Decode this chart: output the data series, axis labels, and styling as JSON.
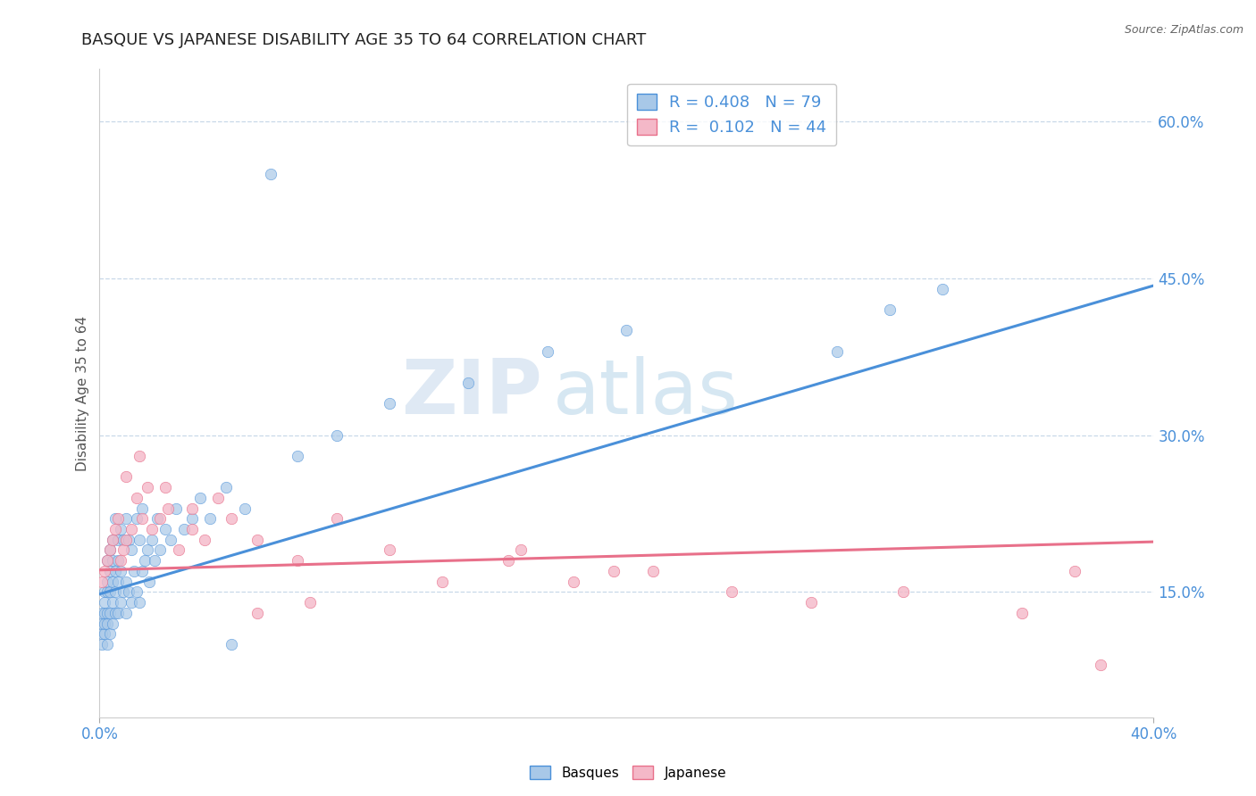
{
  "title": "BASQUE VS JAPANESE DISABILITY AGE 35 TO 64 CORRELATION CHART",
  "source": "Source: ZipAtlas.com",
  "ylabel": "Disability Age 35 to 64",
  "xlim": [
    0.0,
    0.4
  ],
  "ylim": [
    0.03,
    0.65
  ],
  "xtick_labels": [
    "0.0%",
    "40.0%"
  ],
  "ytick_labels": [
    "15.0%",
    "30.0%",
    "45.0%",
    "60.0%"
  ],
  "ytick_values": [
    0.15,
    0.3,
    0.45,
    0.6
  ],
  "basque_color": "#a8c8e8",
  "japanese_color": "#f4b8c8",
  "basque_line_color": "#4a90d9",
  "japanese_line_color": "#e8708a",
  "legend_text_color": "#4a90d9",
  "R_basque": 0.408,
  "N_basque": 79,
  "R_japanese": 0.102,
  "N_japanese": 44,
  "basque_x": [
    0.001,
    0.001,
    0.001,
    0.001,
    0.002,
    0.002,
    0.002,
    0.002,
    0.002,
    0.003,
    0.003,
    0.003,
    0.003,
    0.003,
    0.003,
    0.004,
    0.004,
    0.004,
    0.004,
    0.004,
    0.005,
    0.005,
    0.005,
    0.005,
    0.005,
    0.006,
    0.006,
    0.006,
    0.006,
    0.007,
    0.007,
    0.007,
    0.007,
    0.008,
    0.008,
    0.008,
    0.009,
    0.009,
    0.01,
    0.01,
    0.01,
    0.011,
    0.011,
    0.012,
    0.012,
    0.013,
    0.014,
    0.014,
    0.015,
    0.015,
    0.016,
    0.016,
    0.017,
    0.018,
    0.019,
    0.02,
    0.021,
    0.022,
    0.023,
    0.025,
    0.027,
    0.029,
    0.032,
    0.035,
    0.038,
    0.042,
    0.048,
    0.055,
    0.065,
    0.075,
    0.09,
    0.11,
    0.14,
    0.17,
    0.2,
    0.05,
    0.28,
    0.3,
    0.32
  ],
  "basque_y": [
    0.1,
    0.11,
    0.12,
    0.13,
    0.11,
    0.12,
    0.13,
    0.14,
    0.15,
    0.1,
    0.12,
    0.13,
    0.15,
    0.16,
    0.18,
    0.11,
    0.13,
    0.15,
    0.17,
    0.19,
    0.12,
    0.14,
    0.16,
    0.18,
    0.2,
    0.13,
    0.15,
    0.17,
    0.22,
    0.13,
    0.16,
    0.18,
    0.2,
    0.14,
    0.17,
    0.21,
    0.15,
    0.2,
    0.13,
    0.16,
    0.22,
    0.15,
    0.2,
    0.14,
    0.19,
    0.17,
    0.15,
    0.22,
    0.14,
    0.2,
    0.17,
    0.23,
    0.18,
    0.19,
    0.16,
    0.2,
    0.18,
    0.22,
    0.19,
    0.21,
    0.2,
    0.23,
    0.21,
    0.22,
    0.24,
    0.22,
    0.25,
    0.23,
    0.55,
    0.28,
    0.3,
    0.33,
    0.35,
    0.38,
    0.4,
    0.1,
    0.38,
    0.42,
    0.44
  ],
  "japanese_x": [
    0.001,
    0.002,
    0.003,
    0.004,
    0.005,
    0.006,
    0.007,
    0.008,
    0.009,
    0.01,
    0.012,
    0.014,
    0.016,
    0.018,
    0.02,
    0.023,
    0.026,
    0.03,
    0.035,
    0.04,
    0.05,
    0.06,
    0.075,
    0.09,
    0.11,
    0.13,
    0.155,
    0.18,
    0.21,
    0.24,
    0.27,
    0.305,
    0.35,
    0.01,
    0.015,
    0.025,
    0.035,
    0.045,
    0.06,
    0.08,
    0.16,
    0.195,
    0.37,
    0.38
  ],
  "japanese_y": [
    0.16,
    0.17,
    0.18,
    0.19,
    0.2,
    0.21,
    0.22,
    0.18,
    0.19,
    0.2,
    0.21,
    0.24,
    0.22,
    0.25,
    0.21,
    0.22,
    0.23,
    0.19,
    0.21,
    0.2,
    0.22,
    0.2,
    0.18,
    0.22,
    0.19,
    0.16,
    0.18,
    0.16,
    0.17,
    0.15,
    0.14,
    0.15,
    0.13,
    0.26,
    0.28,
    0.25,
    0.23,
    0.24,
    0.13,
    0.14,
    0.19,
    0.17,
    0.17,
    0.08
  ],
  "basque_trend": [
    0.148,
    0.443
  ],
  "japanese_trend": [
    0.171,
    0.198
  ],
  "watermark_zip": "ZIP",
  "watermark_atlas": "atlas",
  "background_color": "#ffffff",
  "grid_color": "#c8d8e8"
}
